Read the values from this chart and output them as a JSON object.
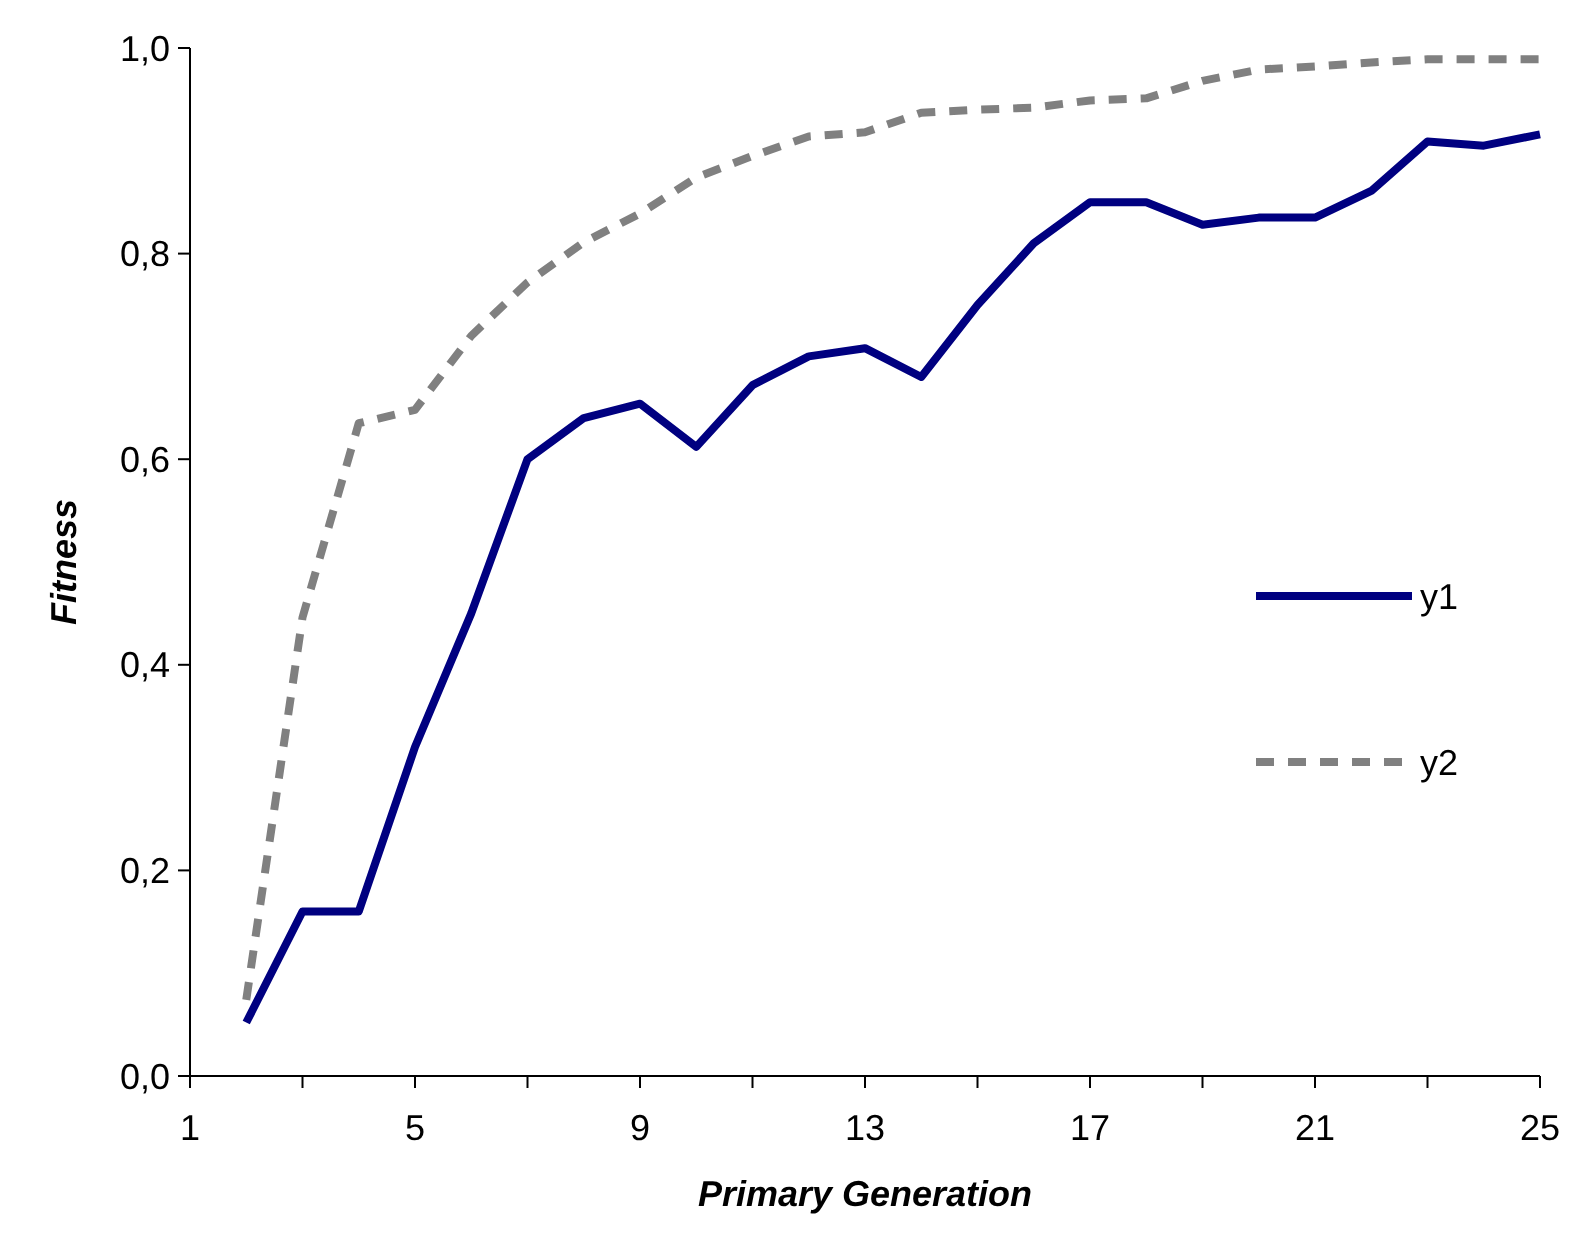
{
  "chart_data": {
    "type": "line",
    "xlabel": "Primary Generation",
    "ylabel": "Fitness",
    "x": [
      2,
      3,
      4,
      5,
      6,
      7,
      8,
      9,
      10,
      11,
      12,
      13,
      14,
      15,
      16,
      17,
      18,
      19,
      20,
      21,
      22,
      23,
      24,
      25
    ],
    "xlim": [
      1,
      25
    ],
    "xticks": [
      1,
      {
        "value": 3,
        "label": null
      },
      5,
      {
        "value": 7,
        "label": null
      },
      9,
      {
        "value": 11,
        "label": null
      },
      13,
      {
        "value": 15,
        "label": null
      },
      17,
      {
        "value": 19,
        "label": null
      },
      21,
      {
        "value": 23,
        "label": null
      },
      25
    ],
    "ylim": [
      0,
      1
    ],
    "yticks": [
      {
        "value": 0,
        "label": "0,0"
      },
      {
        "value": 0.2,
        "label": "0,2"
      },
      {
        "value": 0.4,
        "label": "0,4"
      },
      {
        "value": 0.6,
        "label": "0,6"
      },
      {
        "value": 0.8,
        "label": "0,8"
      },
      {
        "value": 1,
        "label": "1,0"
      }
    ],
    "grid": false,
    "legend": "right",
    "marker": "none",
    "series": [
      {
        "name": "y1",
        "color": "#000080",
        "line_style": "solid",
        "values": [
          0.052,
          0.16,
          0.16,
          0.32,
          0.45,
          0.6,
          0.64,
          0.654,
          0.612,
          0.672,
          0.7,
          0.708,
          0.68,
          0.75,
          0.81,
          0.85,
          0.85,
          0.828,
          0.835,
          0.835,
          0.861,
          0.909,
          0.905,
          0.916
        ]
      },
      {
        "name": "y2",
        "color": "#808080",
        "line_style": "dashed",
        "values": [
          0.074,
          0.446,
          0.635,
          0.648,
          0.72,
          0.772,
          0.811,
          0.839,
          0.874,
          0.895,
          0.914,
          0.918,
          0.937,
          0.94,
          0.942,
          0.949,
          0.951,
          0.968,
          0.979,
          0.982,
          0.986,
          0.989,
          0.989,
          0.989
        ]
      }
    ]
  }
}
